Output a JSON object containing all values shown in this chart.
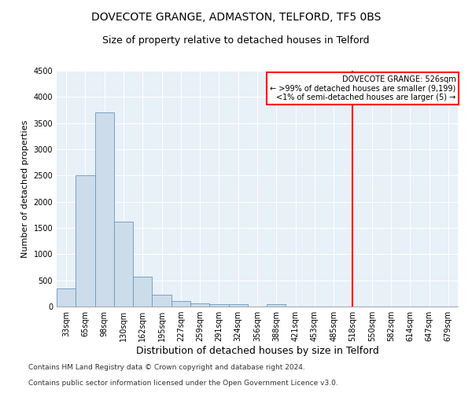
{
  "title1": "DOVECOTE GRANGE, ADMASTON, TELFORD, TF5 0BS",
  "title2": "Size of property relative to detached houses in Telford",
  "xlabel": "Distribution of detached houses by size in Telford",
  "ylabel": "Number of detached properties",
  "categories": [
    "33sqm",
    "65sqm",
    "98sqm",
    "130sqm",
    "162sqm",
    "195sqm",
    "227sqm",
    "259sqm",
    "291sqm",
    "324sqm",
    "356sqm",
    "388sqm",
    "421sqm",
    "453sqm",
    "485sqm",
    "518sqm",
    "550sqm",
    "582sqm",
    "614sqm",
    "647sqm",
    "679sqm"
  ],
  "values": [
    350,
    2500,
    3700,
    1625,
    575,
    225,
    100,
    60,
    50,
    50,
    0,
    50,
    0,
    0,
    0,
    0,
    0,
    0,
    0,
    0,
    0
  ],
  "bar_color": "#cddceb",
  "bar_edge_color": "#6699bb",
  "vline_index": 15,
  "vline_color": "red",
  "annotation_title": "DOVECOTE GRANGE: 526sqm",
  "annotation_line1": "← >99% of detached houses are smaller (9,199)",
  "annotation_line2": "<1% of semi-detached houses are larger (5) →",
  "annotation_box_color": "red",
  "ylim": [
    0,
    4500
  ],
  "yticks": [
    0,
    500,
    1000,
    1500,
    2000,
    2500,
    3000,
    3500,
    4000,
    4500
  ],
  "footer1": "Contains HM Land Registry data © Crown copyright and database right 2024.",
  "footer2": "Contains public sector information licensed under the Open Government Licence v3.0.",
  "bg_color": "#e8f0f8",
  "grid_color": "#ffffff",
  "title1_fontsize": 10,
  "title2_fontsize": 9,
  "xlabel_fontsize": 9,
  "ylabel_fontsize": 8,
  "tick_fontsize": 7,
  "footer_fontsize": 6.5
}
